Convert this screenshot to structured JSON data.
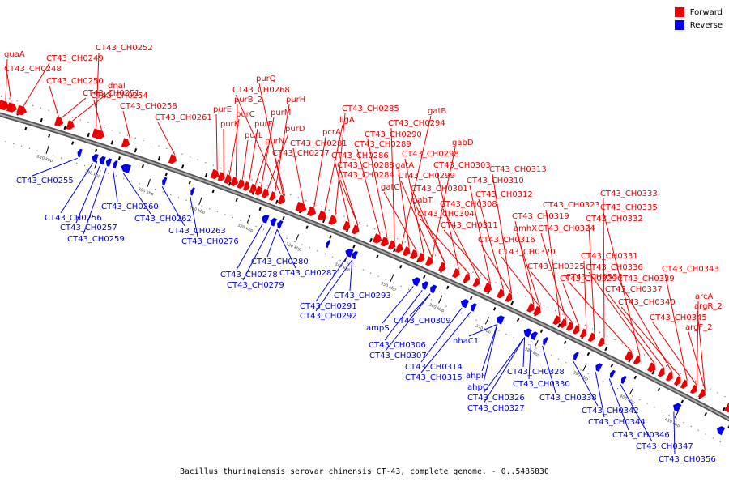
{
  "caption": "Bacillus thuringiensis serovar chinensis CT-43, complete genome. - 0..5486830",
  "legend": [
    {
      "label": "Forward",
      "color": "#ee0000"
    },
    {
      "label": "Reverse",
      "color": "#0000ee"
    }
  ],
  "colors": {
    "forward": "#ee0000",
    "reverse": "#0000ee",
    "backbone": "#888888"
  },
  "kbp_labels": [
    "280 kbp",
    "290 kbp",
    "300 kbp",
    "310 kbp",
    "320 kbp",
    "330 kbp",
    "340 kbp",
    "350 kbp",
    "360 kbp",
    "370 kbp",
    "380 kbp",
    "390 kbp",
    "400 kbp",
    "410 kbp"
  ],
  "forward_genes": [
    "guaA",
    "CT43_CH0248",
    "CT43_CH0249",
    "CT43_CH0250",
    "CT43_CH0251",
    "dnaI",
    "CT43_CH0252",
    "CT43_CH0254",
    "CT43_CH0258",
    "CT43_CH0261",
    "purE",
    "purK",
    "purC",
    "purB_2",
    "purL",
    "purF",
    "purN",
    "purM",
    "purD",
    "purH",
    "purQ",
    "CT43_CH0268",
    "CT43_CH0277",
    "CT43_CH0281",
    "pcrA",
    "ligA",
    "CT43_CH0285",
    "CT43_CH0286",
    "CT43_CH0284",
    "CT43_CH0288",
    "CT43_CH0289",
    "CT43_CH0290",
    "CT43_CH0294",
    "gatB",
    "gatA",
    "gatC",
    "CT43_CH0298",
    "gabD",
    "CT43_CH0299",
    "CT43_CH0301",
    "gabT",
    "CT43_CH0303",
    "CT43_CH0304",
    "CT43_CH0308",
    "CT43_CH0310",
    "CT43_CH0311",
    "CT43_CH0312",
    "CT43_CH0313",
    "CT43_CH0316",
    "CT43_CH0319",
    "amhX",
    "CT43_CH0320",
    "CT43_CH0323",
    "CT43_CH0324",
    "CT43_CH0325",
    "CT43_CH0329",
    "CT43_CH0331",
    "CT43_CH0332",
    "CT43_CH0333",
    "CT43_CH0334",
    "CT43_CH0335",
    "CT43_CH0336",
    "CT43_CH0337",
    "CT43_CH0339",
    "CT43_CH0340",
    "CT43_CH0343",
    "CT43_CH0345",
    "arcA",
    "argR_2",
    "argF_2"
  ],
  "reverse_genes": [
    "CT43_CH0255",
    "CT43_CH0256",
    "CT43_CH0257",
    "CT43_CH0259",
    "CT43_CH0260",
    "CT43_CH0262",
    "CT43_CH0263",
    "CT43_CH0276",
    "CT43_CH0278",
    "CT43_CH0279",
    "CT43_CH0280",
    "CT43_CH0287",
    "CT43_CH0291",
    "CT43_CH0292",
    "CT43_CH0293",
    "ampS",
    "CT43_CH0306",
    "CT43_CH0307",
    "CT43_CH0309",
    "CT43_CH0314",
    "CT43_CH0315",
    "nhaC1",
    "ahpF",
    "ahpC",
    "CT43_CH0326",
    "CT43_CH0327",
    "CT43_CH0328",
    "CT43_CH0330",
    "CT43_CH0338",
    "CT43_CH0342",
    "CT43_CH0344",
    "CT43_CH0346",
    "CT43_CH0347",
    "CT43_CH0356"
  ]
}
